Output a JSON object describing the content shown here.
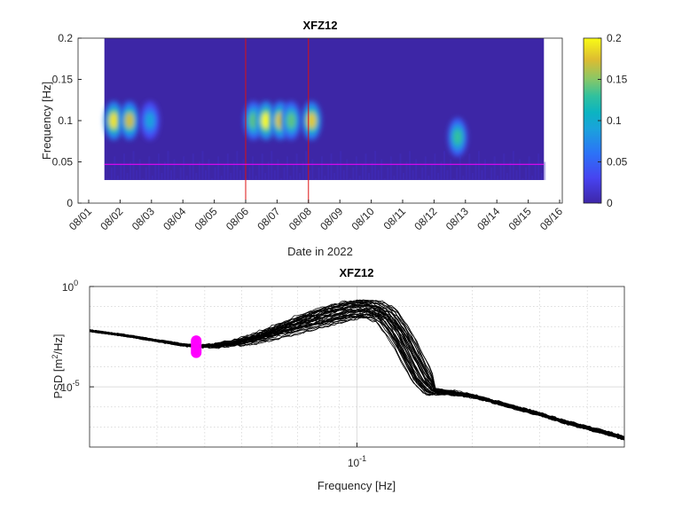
{
  "chart_data": [
    {
      "type": "heatmap",
      "title": "XFZ12",
      "xlabel": "Date in 2022",
      "ylabel": "Frequency [Hz]",
      "ylim": [
        0,
        0.2
      ],
      "yticks": [
        "0",
        "0.05",
        "0.1",
        "0.15",
        "0.2"
      ],
      "xticks": [
        "08/01",
        "08/02",
        "08/03",
        "08/04",
        "08/05",
        "08/06",
        "08/07",
        "08/08",
        "08/09",
        "08/10",
        "08/11",
        "08/12",
        "08/13",
        "08/14",
        "08/15",
        "08/16"
      ],
      "data_x_range": [
        "08/01 12:00",
        "08/15 12:00"
      ],
      "data_freq_range": [
        0.028,
        0.2
      ],
      "colormap": "parula",
      "colorbar": {
        "ticks": [
          "0",
          "0.05",
          "0.1",
          "0.15",
          "0.2"
        ],
        "clim": [
          0,
          0.2
        ],
        "position": "right"
      },
      "energy_blobs": [
        {
          "day": 1.8,
          "freq": 0.1,
          "intensity": 0.19
        },
        {
          "day": 2.3,
          "freq": 0.1,
          "intensity": 0.17
        },
        {
          "day": 2.95,
          "freq": 0.1,
          "intensity": 0.09
        },
        {
          "day": 6.25,
          "freq": 0.1,
          "intensity": 0.14
        },
        {
          "day": 6.65,
          "freq": 0.1,
          "intensity": 0.2
        },
        {
          "day": 7.1,
          "freq": 0.1,
          "intensity": 0.18
        },
        {
          "day": 7.45,
          "freq": 0.1,
          "intensity": 0.14
        },
        {
          "day": 8.1,
          "freq": 0.1,
          "intensity": 0.18
        },
        {
          "day": 12.75,
          "freq": 0.08,
          "intensity": 0.13
        }
      ],
      "vertical_markers": [
        "08/06",
        "08/08"
      ],
      "horizontal_marker_hz": 0.047,
      "marker_colors": {
        "vertical": "#dd1010",
        "horizontal": "#ff00ff"
      }
    },
    {
      "type": "line",
      "title": "XFZ12",
      "xlabel": "Frequency [Hz]",
      "ylabel": "PSD [m²/Hz]",
      "ylabel_parts": {
        "base": "PSD [m",
        "sup": "2",
        "tail": "/Hz]"
      },
      "xscale": "log",
      "yscale": "log",
      "xlim": [
        0.02,
        0.5
      ],
      "ylim": [
        1e-08,
        1
      ],
      "yticks": [
        {
          "base": "10",
          "exp": "0",
          "value": 1
        },
        {
          "base": "10",
          "exp": "-5",
          "value": 1e-05
        }
      ],
      "xticks": [
        {
          "base": "10",
          "exp": "-1",
          "value": 0.1
        }
      ],
      "grid": true,
      "series_color": "#000000",
      "series_count": 40,
      "mean_curve": {
        "x": [
          0.02,
          0.025,
          0.03,
          0.035,
          0.038,
          0.042,
          0.05,
          0.06,
          0.07,
          0.08,
          0.09,
          0.1,
          0.11,
          0.12,
          0.13,
          0.14,
          0.15,
          0.16,
          0.18,
          0.2,
          0.22,
          0.25,
          0.3,
          0.35,
          0.4,
          0.45,
          0.5
        ],
        "log10_psd": [
          -2.2,
          -2.45,
          -2.7,
          -2.9,
          -2.98,
          -2.95,
          -2.75,
          -2.3,
          -1.85,
          -1.5,
          -1.25,
          -1.05,
          -1.05,
          -1.4,
          -2.3,
          -3.5,
          -4.6,
          -5.2,
          -5.3,
          -5.45,
          -5.65,
          -5.95,
          -6.35,
          -6.75,
          -7.05,
          -7.3,
          -7.55
        ]
      },
      "highlight": {
        "x": 0.038,
        "log10_psd_range": [
          -3.3,
          -2.7
        ],
        "color": "#ff00ff"
      }
    }
  ]
}
